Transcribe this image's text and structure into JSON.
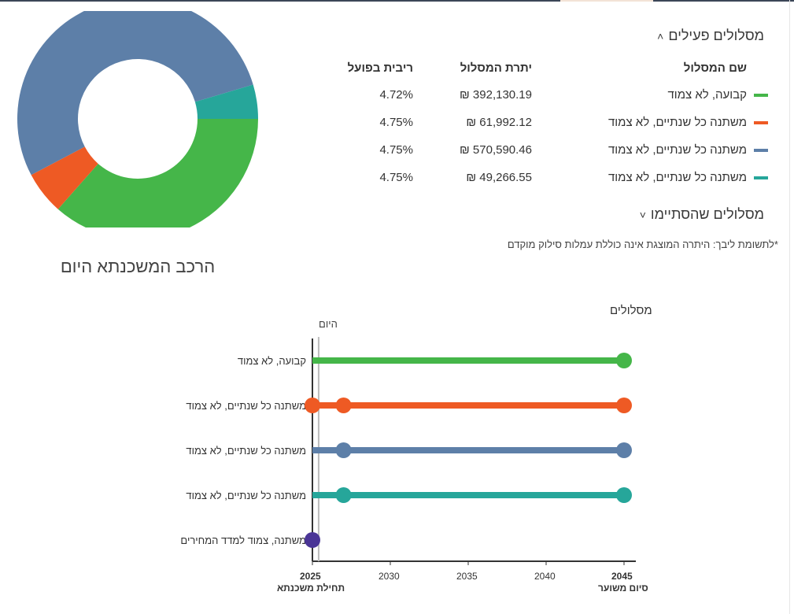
{
  "colors": {
    "green": "#45b649",
    "orange": "#ee5a24",
    "blue": "#5d7fa8",
    "teal": "#26a69a",
    "purple": "#4a3596",
    "axis": "#333333"
  },
  "donut": {
    "caption": "הרכב המשכנתא היום",
    "slices": [
      {
        "name": "קבועה, לא צמוד",
        "value": 392130.19,
        "color": "#45b649"
      },
      {
        "name": "משתנה כל שנתיים, לא צמוד",
        "value": 61992.12,
        "color": "#ee5a24"
      },
      {
        "name": "משתנה כל שנתיים, לא צמוד",
        "value": 570590.46,
        "color": "#5d7fa8"
      },
      {
        "name": "משתנה כל שנתיים, לא צמוד",
        "value": 49266.55,
        "color": "#26a69a"
      }
    ]
  },
  "active_section": {
    "title": "מסלולים פעילים",
    "chevron": "˄",
    "headers": {
      "name": "שם המסלול",
      "balance": "יתרת המסלול",
      "rate": "ריבית בפועל"
    },
    "rows": [
      {
        "name": "קבועה, לא צמוד",
        "balance": "392,130.19 ₪",
        "rate": "4.72%",
        "color": "#45b649"
      },
      {
        "name": "משתנה כל שנתיים, לא צמוד",
        "balance": "61,992.12 ₪",
        "rate": "4.75%",
        "color": "#ee5a24"
      },
      {
        "name": "משתנה כל שנתיים, לא צמוד",
        "balance": "570,590.46 ₪",
        "rate": "4.75%",
        "color": "#5d7fa8"
      },
      {
        "name": "משתנה כל שנתיים, לא צמוד",
        "balance": "49,266.55 ₪",
        "rate": "4.75%",
        "color": "#26a69a"
      }
    ]
  },
  "ended_section": {
    "title": "מסלולים שהסתיימו",
    "chevron": "˅"
  },
  "disclaimer": "*לתשומת ליבך: היתרה המוצגת אינה כוללת עמלות סילוק מוקדם",
  "chart_data": {
    "type": "timeline",
    "title": "מסלולים",
    "today_label": "היום",
    "today_x": 2025.4,
    "x_ticks": [
      2025,
      2030,
      2035,
      2040,
      2045
    ],
    "x_start_label": "תחילת משכנתא",
    "x_end_label": "סיום משוער",
    "xlim": [
      2025,
      2045
    ],
    "series": [
      {
        "name": "קבועה, לא צמוד",
        "color": "#45b649",
        "start": 2025,
        "points": [
          2045
        ]
      },
      {
        "name": "משתנה כל שנתיים, לא צמוד",
        "color": "#ee5a24",
        "start": 2025,
        "points": [
          2025,
          2027,
          2045
        ]
      },
      {
        "name": "משתנה כל שנתיים, לא צמוד",
        "color": "#5d7fa8",
        "start": 2025,
        "points": [
          2027,
          2045
        ]
      },
      {
        "name": "משתנה כל שנתיים, לא צמוד",
        "color": "#26a69a",
        "start": 2025,
        "points": [
          2027,
          2045
        ]
      },
      {
        "name": "משתנה, צמוד למדד המחירים",
        "color": "#4a3596",
        "start": 2025,
        "points": [
          2025
        ]
      }
    ]
  }
}
